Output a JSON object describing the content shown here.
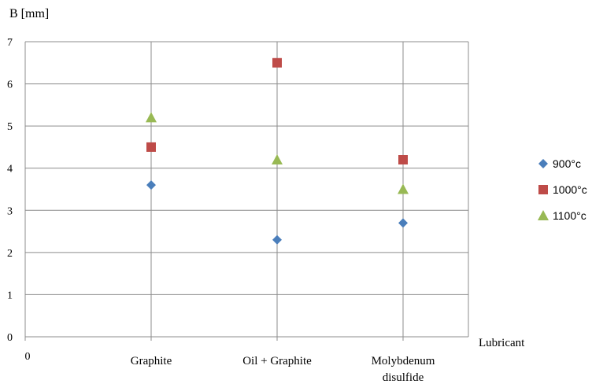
{
  "chart_data": {
    "type": "scatter",
    "ylabel": "B [mm]",
    "xlabel": "Lubricant",
    "x_origin_label": "0",
    "categories": [
      "Graphite",
      [
        "Oil + Graphite"
      ],
      [
        "Molybdenum",
        "disulfide"
      ]
    ],
    "ylim": [
      0,
      7
    ],
    "yticks": [
      "0",
      "1",
      "2",
      "3",
      "4",
      "5",
      "6",
      "7"
    ],
    "grid": true,
    "legend_position": "right",
    "series": [
      {
        "name": "900°c",
        "marker": "diamond",
        "color": "#4a7ebb",
        "values": [
          3.6,
          2.3,
          2.7
        ]
      },
      {
        "name": "1000°c",
        "marker": "square",
        "color": "#be4b48",
        "values": [
          4.5,
          6.5,
          4.2
        ]
      },
      {
        "name": "1100°c",
        "marker": "triangle",
        "color": "#98b954",
        "values": [
          5.2,
          4.2,
          3.5
        ]
      }
    ]
  }
}
